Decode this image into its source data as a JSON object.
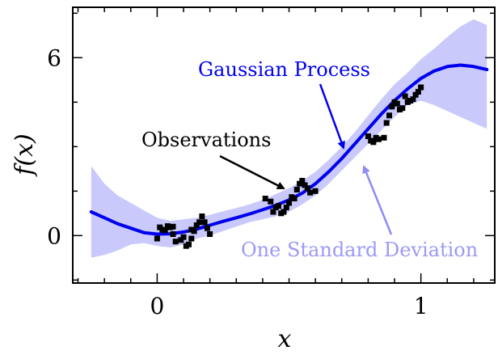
{
  "chart_data": {
    "type": "line",
    "xlabel": "x",
    "ylabel": "f(x)",
    "xlim": [
      -0.32,
      1.28
    ],
    "ylim": [
      -1.6,
      7.7
    ],
    "xticks": [
      {
        "value": 0,
        "label": "0"
      },
      {
        "value": 1,
        "label": "1"
      }
    ],
    "yticks": [
      {
        "value": 0,
        "label": "0"
      },
      {
        "value": 6,
        "label": "6"
      }
    ],
    "x_minor_step": 0.1,
    "y_minor_step": 1.5,
    "colors": {
      "mean": "#0000ee",
      "band": "#c9c9fb",
      "points": "#000000",
      "band_label": "#9a9af6"
    },
    "series": [
      {
        "name": "Gaussian Process",
        "role": "mean",
        "x": [
          -0.25,
          -0.2,
          -0.15,
          -0.1,
          -0.05,
          0.0,
          0.05,
          0.1,
          0.15,
          0.2,
          0.25,
          0.3,
          0.35,
          0.4,
          0.45,
          0.5,
          0.55,
          0.6,
          0.65,
          0.7,
          0.75,
          0.8,
          0.85,
          0.9,
          0.95,
          1.0,
          1.05,
          1.1,
          1.15,
          1.2,
          1.25
        ],
        "y": [
          0.8,
          0.6,
          0.4,
          0.25,
          0.1,
          0.05,
          0.06,
          0.12,
          0.22,
          0.35,
          0.48,
          0.6,
          0.73,
          0.87,
          1.02,
          1.2,
          1.43,
          1.75,
          2.15,
          2.6,
          3.1,
          3.6,
          4.1,
          4.55,
          4.95,
          5.3,
          5.55,
          5.7,
          5.75,
          5.7,
          5.6
        ]
      },
      {
        "name": "One Standard Deviation",
        "role": "band",
        "x": [
          -0.25,
          -0.2,
          -0.15,
          -0.1,
          -0.05,
          0.0,
          0.05,
          0.1,
          0.15,
          0.2,
          0.25,
          0.3,
          0.35,
          0.4,
          0.45,
          0.5,
          0.55,
          0.6,
          0.65,
          0.7,
          0.75,
          0.8,
          0.85,
          0.9,
          0.95,
          1.0,
          1.05,
          1.1,
          1.15,
          1.2,
          1.25
        ],
        "lower": [
          -0.75,
          -0.65,
          -0.5,
          -0.3,
          -0.25,
          -0.35,
          -0.4,
          -0.3,
          -0.1,
          0.0,
          0.15,
          0.3,
          0.45,
          0.55,
          0.65,
          0.8,
          1.05,
          1.35,
          1.75,
          2.2,
          2.65,
          3.1,
          3.55,
          4.0,
          4.4,
          4.55,
          4.4,
          4.2,
          4.0,
          3.8,
          3.6
        ],
        "upper": [
          2.35,
          1.75,
          1.35,
          1.1,
          0.85,
          0.6,
          0.5,
          0.55,
          0.6,
          0.7,
          0.82,
          0.93,
          1.05,
          1.2,
          1.4,
          1.6,
          1.85,
          2.15,
          2.55,
          3.0,
          3.5,
          4.05,
          4.6,
          5.1,
          5.5,
          5.95,
          6.3,
          6.7,
          7.05,
          7.3,
          7.1
        ]
      }
    ],
    "observations": {
      "name": "Observations",
      "points": [
        [
          0.0,
          -0.1
        ],
        [
          0.01,
          0.28
        ],
        [
          0.02,
          0.2
        ],
        [
          0.03,
          0.18
        ],
        [
          0.04,
          0.32
        ],
        [
          0.05,
          0.28
        ],
        [
          0.06,
          0.3
        ],
        [
          0.06,
          0.05
        ],
        [
          0.07,
          -0.2
        ],
        [
          0.09,
          -0.15
        ],
        [
          0.1,
          -0.05
        ],
        [
          0.11,
          -0.35
        ],
        [
          0.12,
          -0.3
        ],
        [
          0.13,
          -0.1
        ],
        [
          0.13,
          0.2
        ],
        [
          0.14,
          0.15
        ],
        [
          0.15,
          0.35
        ],
        [
          0.16,
          0.45
        ],
        [
          0.17,
          0.65
        ],
        [
          0.18,
          0.45
        ],
        [
          0.19,
          0.25
        ],
        [
          0.2,
          0.05
        ],
        [
          0.41,
          1.25
        ],
        [
          0.43,
          1.15
        ],
        [
          0.44,
          0.8
        ],
        [
          0.45,
          0.95
        ],
        [
          0.46,
          1.0
        ],
        [
          0.47,
          0.75
        ],
        [
          0.48,
          0.8
        ],
        [
          0.49,
          0.95
        ],
        [
          0.5,
          1.1
        ],
        [
          0.51,
          1.3
        ],
        [
          0.52,
          1.25
        ],
        [
          0.53,
          1.55
        ],
        [
          0.54,
          1.75
        ],
        [
          0.55,
          1.85
        ],
        [
          0.56,
          1.7
        ],
        [
          0.57,
          1.6
        ],
        [
          0.58,
          1.45
        ],
        [
          0.6,
          1.5
        ],
        [
          0.8,
          3.35
        ],
        [
          0.81,
          3.2
        ],
        [
          0.82,
          3.15
        ],
        [
          0.83,
          3.3
        ],
        [
          0.84,
          3.25
        ],
        [
          0.86,
          3.3
        ],
        [
          0.87,
          3.8
        ],
        [
          0.88,
          4.05
        ],
        [
          0.89,
          4.35
        ],
        [
          0.9,
          4.5
        ],
        [
          0.91,
          4.45
        ],
        [
          0.92,
          4.25
        ],
        [
          0.93,
          4.3
        ],
        [
          0.94,
          4.7
        ],
        [
          0.95,
          4.5
        ],
        [
          0.96,
          4.55
        ],
        [
          0.97,
          4.6
        ],
        [
          0.98,
          4.75
        ],
        [
          0.99,
          4.85
        ],
        [
          1.0,
          5.0
        ]
      ]
    },
    "annotations": {
      "gp_label": "Gaussian Process",
      "band_label": "One Standard Deviation",
      "obs_label": "Observations"
    }
  }
}
